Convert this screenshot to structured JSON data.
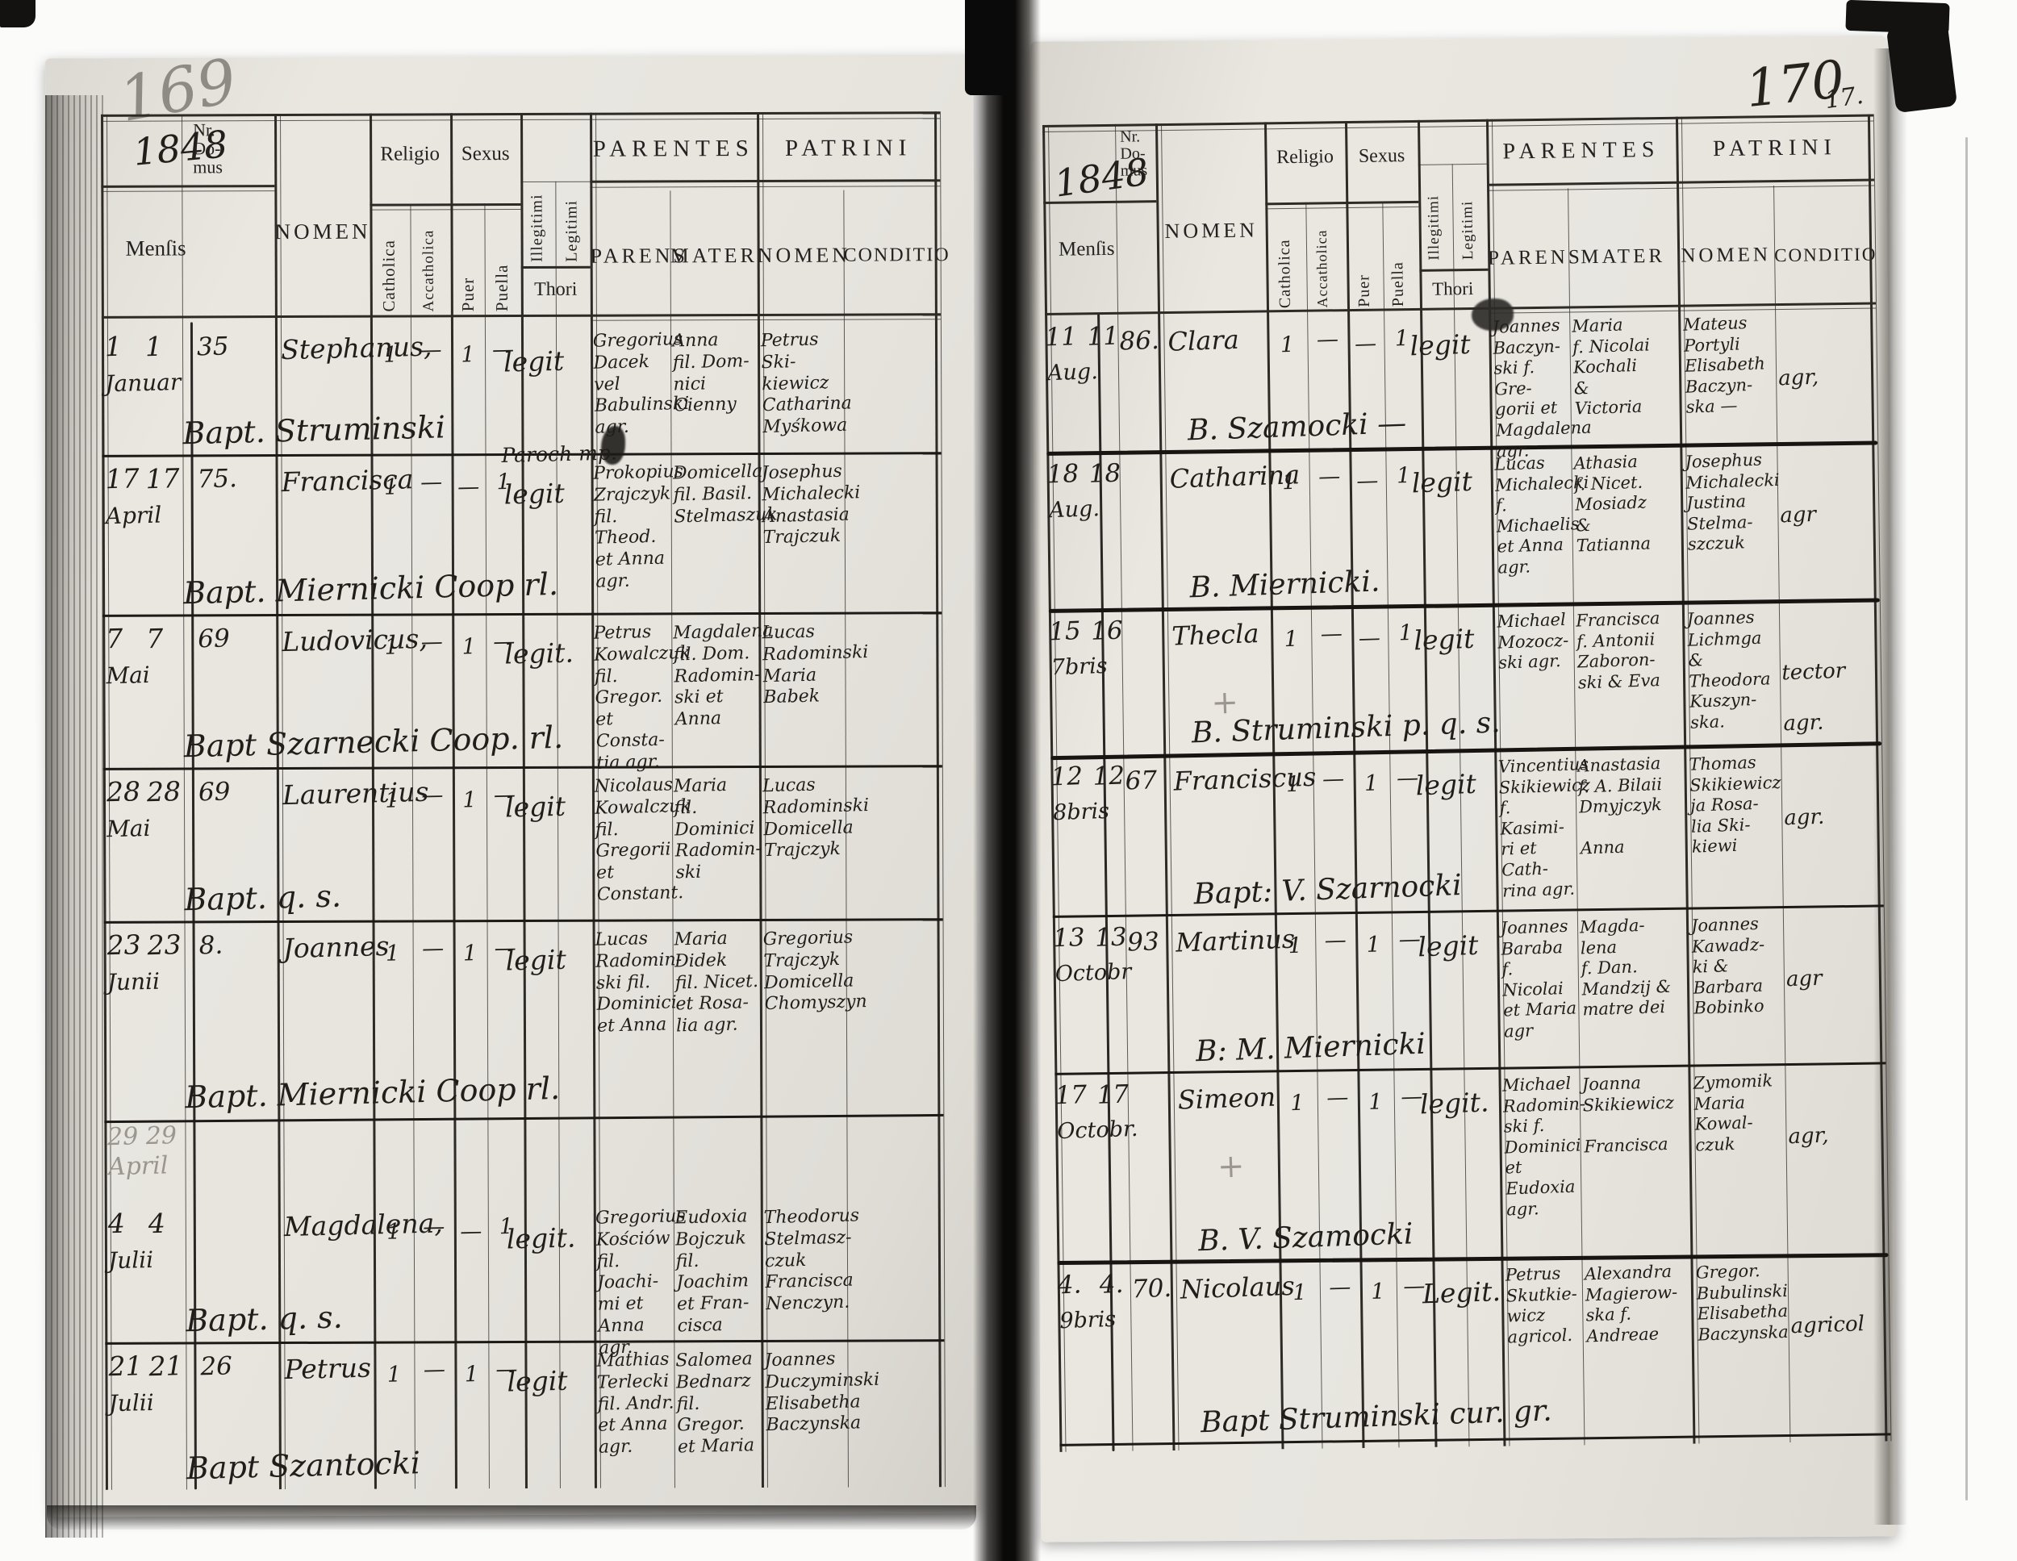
{
  "scan": {
    "left_page_number": "169",
    "right_page_number": "170",
    "right_page_number_secondary": "17.",
    "left_year": "1848",
    "right_year": "1848"
  },
  "header_labels": {
    "mensis": "Menſis",
    "nr_domus": "Nr.\nDo-\nmus",
    "nomen": "NOMEN",
    "religio": "Religio",
    "catholica": "Catholica",
    "accatholica": "Accatholica",
    "sexus": "Sexus",
    "puer": "Puer",
    "puella": "Puella",
    "illegitimi": "Illegitimi",
    "legitimi": "Legitimi",
    "thori": "Thori",
    "parentes": "PARENTES",
    "patrini": "PATRINI",
    "parens": "PARENS",
    "mater": "MATER",
    "patrini_nomen": "NOMEN",
    "conditio": "CONDITIO"
  },
  "left_page": {
    "rows": [
      {
        "d1": "1",
        "d2": "1",
        "month": "Januar",
        "nr": "35",
        "nomen": "Stephanus,",
        "cath": "1",
        "accath": "—",
        "puer": "1",
        "puella": "—",
        "annotation": "",
        "thori": "legit",
        "parens": "Gregorius\nDacek\nvel\nBabulinski\nagr.",
        "mater": "Anna\nfil. Dom-\nnici\nCienny",
        "patrini": "Petrus Ski-\nkiewicz\nCatharina\nMyśkowa",
        "conditio": "",
        "note": "Bapt. Struminski",
        "ghost": "",
        "cross": ""
      },
      {
        "d1": "17",
        "d2": "17",
        "month": "April",
        "nr": "75.",
        "nomen": "Francisca",
        "cath": "1",
        "accath": "—",
        "puer": "—",
        "puella": "1",
        "annotation": "Paroch mp.",
        "thori": "legit",
        "parens": "Prokopius\nZrajczyk\nfil. Theod.\net Anna\nagr.",
        "mater": "Domicella\nfil. Basil.\nStelmaszuk",
        "patrini": "Josephus\nMichalecki\nAnastasia\nTrajczuk",
        "conditio": "",
        "note": "Bapt. Miernicki Coop rl.",
        "ghost": "",
        "cross": ""
      },
      {
        "d1": "7",
        "d2": "7",
        "month": "Mai",
        "nr": "69",
        "nomen": "Ludovicus,",
        "cath": "1",
        "accath": "—",
        "puer": "1",
        "puella": "—",
        "annotation": "",
        "thori": "legit.",
        "parens": "Petrus\nKowalczuk\nfil. Gregor.\net Consta-\ntia agr.",
        "mater": "Magdalena\nfil. Dom.\nRadomin-\nski et\nAnna",
        "patrini": "Lucas\nRadominski\nMaria\nBabek",
        "conditio": "",
        "note": "Bapt Szarnecki Coop. rl.",
        "ghost": "",
        "cross": ""
      },
      {
        "d1": "28",
        "d2": "28",
        "month": "Mai",
        "nr": "69",
        "nomen": "Laurentius",
        "cath": "1",
        "accath": "—",
        "puer": "1",
        "puella": "—",
        "annotation": "",
        "thori": "legit",
        "parens": "Nicolaus\nKowalczuk\nfil. Gregorii\net Constant.",
        "mater": "Maria\nfil.\nDominici\nRadomin-\nski",
        "patrini": "Lucas\nRadominski\nDomicella\nTrajczyk",
        "conditio": "",
        "note": "Bapt. q. s.",
        "ghost": "",
        "cross": ""
      },
      {
        "d1": "23",
        "d2": "23",
        "month": "Junii",
        "nr": "8.",
        "nomen": "Joannes",
        "cath": "1",
        "accath": "—",
        "puer": "1",
        "puella": "—",
        "annotation": "",
        "thori": "legit",
        "parens": "Lucas\nRadomin-\nski fil.\nDominici\net Anna",
        "mater": "Maria\nDidek\nfil. Nicet.\net Rosa-\nlia agr.",
        "patrini": "Gregorius\nTrajczyk\nDomicella\nChomyszyn",
        "conditio": "",
        "note": "Bapt. Miernicki Coop rl.",
        "ghost": "",
        "cross": ""
      },
      {
        "d1": "4",
        "d2": "4",
        "month": "Julii",
        "nr": "",
        "nomen": "Magdalena,",
        "cath": "1",
        "accath": "—",
        "puer": "—",
        "puella": "1",
        "annotation": "",
        "thori": "legit.",
        "parens": "Gregorius\nKościów\nfil. Joachi-\nmi et\nAnna\nagr.",
        "mater": "Eudoxia\nBojczuk\nfil.\nJoachim\net Fran-\ncisca",
        "patrini": "Theodorus\nStelmasz-\nczuk\nFrancisca\nNenczyn.",
        "conditio": "",
        "note": "Bapt. q. s.",
        "ghost": "29 29\nApril",
        "cross": ""
      },
      {
        "d1": "21",
        "d2": "21",
        "month": "Julii",
        "nr": "26",
        "nomen": "Petrus",
        "cath": "1",
        "accath": "—",
        "puer": "1",
        "puella": "—",
        "annotation": "",
        "thori": "legit",
        "parens": "Mathias\nTerlecki\nfil. Andr.\net Anna\nagr.",
        "mater": "Salomea\nBednarz\nfil. Gregor.\net Maria",
        "patrini": "Joannes\nDuczyminski\nElisabetha\nBaczynska",
        "conditio": "",
        "note": "Bapt Szantocki",
        "ghost": "",
        "cross": ""
      }
    ]
  },
  "right_page": {
    "rows": [
      {
        "d1": "11",
        "d2": "11",
        "month": "Aug.",
        "nr": "86.",
        "nomen": "Clara",
        "cath": "1",
        "accath": "—",
        "puer": "—",
        "puella": "1",
        "annotation": "",
        "thori": "legit",
        "parens": "Joannes\nBaczyn-\nski f. Gre-\ngorii et\nMagdalena\nagr.",
        "mater": "Maria\nf. Nicolai\nKochali\n&\nVictoria",
        "patrini": "Mateus\nPortyli\nElisabeth\nBaczyn-\nska —",
        "conditio": "agr,",
        "note": "B. Szamocki —",
        "ghost": "",
        "cross": ""
      },
      {
        "d1": "18",
        "d2": "18",
        "month": "Aug.",
        "nr": "",
        "nomen": "Catharina",
        "cath": "1",
        "accath": "—",
        "puer": "—",
        "puella": "1",
        "annotation": "",
        "thori": "legit",
        "parens": "Lucas\nMichalecki\nf. Michaelis\net Anna\nagr.",
        "mater": "Athasia\nf. Nicet.\nMosiadz\n&\nTatianna",
        "patrini": "Josephus\nMichalecki\nJustina\nStelma-\nszczuk",
        "conditio": "agr",
        "note": "B. Miernicki.",
        "ghost": "",
        "cross": ""
      },
      {
        "d1": "15",
        "d2": "16",
        "month": "7bris",
        "nr": "",
        "nomen": "Thecla",
        "cath": "1",
        "accath": "—",
        "puer": "—",
        "puella": "1",
        "annotation": "",
        "thori": "legit",
        "parens": "Michael\nMozocz-\nski agr.",
        "mater": "Francisca\nf. Antonii\nZaboron-\nski & Eva",
        "patrini": "Joannes\nLichmga\n& Theodora\nKuszyn-\nska.",
        "conditio": "tector\n\nagr.",
        "note": "B. Struminski p. q. s.",
        "ghost": "",
        "cross": "+"
      },
      {
        "d1": "12",
        "d2": "12",
        "month": "8bris",
        "nr": "67",
        "nomen": "Franciscus",
        "cath": "1",
        "accath": "—",
        "puer": "1",
        "puella": "—",
        "annotation": "",
        "thori": "legit",
        "parens": "Vincentius\nSkikiewicz\nf. Kasimi-\nri et Cath-\nrina agr.",
        "mater": "Anastasia\nf. A. Bilaii\nDmyjczyk\n\nAnna",
        "patrini": "Thomas\nSkikiewicz\nja Rosa-\nlia Ski-\nkiewi",
        "conditio": "agr.",
        "note": "Bapt: V. Szarnocki",
        "ghost": "",
        "cross": ""
      },
      {
        "d1": "13",
        "d2": "13",
        "month": "Octobr",
        "nr": "93",
        "nomen": "Martinus",
        "cath": "1",
        "accath": "—",
        "puer": "1",
        "puella": "—",
        "annotation": "",
        "thori": "legit",
        "parens": "Joannes\nBaraba\nf. Nicolai\net Maria\nagr",
        "mater": "Magda-\nlena\nf. Dan.\nMandzij &\nmatre dei",
        "patrini": "Joannes\nKawadz-\nki &\nBarbara\nBobinko",
        "conditio": "agr",
        "note": "B: M. Miernicki",
        "ghost": "",
        "cross": ""
      },
      {
        "d1": "17",
        "d2": "17",
        "month": "Octobr.",
        "nr": "",
        "nomen": "Simeon",
        "cath": "1",
        "accath": "—",
        "puer": "1",
        "puella": "—",
        "annotation": "",
        "thori": "legit.",
        "parens": "Michael\nRadomin-\nski f.\nDominici\net\nEudoxia\nagr.",
        "mater": "Joanna\nSkikiewicz\n\nFrancisca",
        "patrini": "Zymomik\nMaria\nKowal-\nczuk",
        "conditio": "agr,",
        "note": "B. V. Szamocki",
        "ghost": "",
        "cross": "+"
      },
      {
        "d1": "4.",
        "d2": "4.",
        "month": "9bris",
        "nr": "70.",
        "nomen": "Nicolaus",
        "cath": "1",
        "accath": "—",
        "puer": "1",
        "puella": "—",
        "annotation": "",
        "thori": "Legit.",
        "parens": "Petrus\nSkutkie-\nwicz\nagricol.",
        "mater": "Alexandra\nMagierow-\nska f.\nAndreae",
        "patrini": "Gregor.\nBubulinski\nElisabetha\nBaczynska",
        "conditio": "agricol",
        "note": "Bapt Struminski\ncur. gr.",
        "ghost": "",
        "cross": ""
      }
    ]
  }
}
